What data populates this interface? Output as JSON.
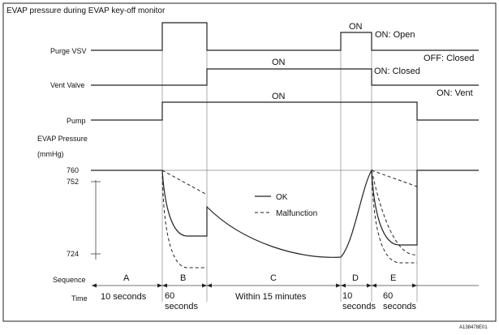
{
  "title": "EVAP pressure during EVAP key-off monitor",
  "signals": {
    "purge_vsv": "Purge VSV",
    "vent_valve": "Vent Valve",
    "pump": "Pump",
    "evap_pressure": "EVAP Pressure",
    "evap_unit": "(mmHg)"
  },
  "pressure_ticks": [
    "760",
    "752",
    "724"
  ],
  "annotations": {
    "on_d": "ON",
    "on_open": "ON: Open",
    "off_closed": "OFF: Closed",
    "vent_on": "ON",
    "on_closed": "ON: Closed",
    "pump_on": "ON",
    "on_vent": "ON: Vent"
  },
  "legend": {
    "ok": "OK",
    "malfunction": "Malfunction"
  },
  "sequence_label": "Sequence",
  "time_label": "Time",
  "sequences": [
    {
      "letter": "A",
      "time": "10 seconds"
    },
    {
      "letter": "B",
      "time": "60 seconds"
    },
    {
      "letter": "C",
      "time": "Within 15 minutes"
    },
    {
      "letter": "D",
      "time": "10 seconds"
    },
    {
      "letter": "E",
      "time": "60 seconds"
    }
  ],
  "figure_id": "A138478E01"
}
